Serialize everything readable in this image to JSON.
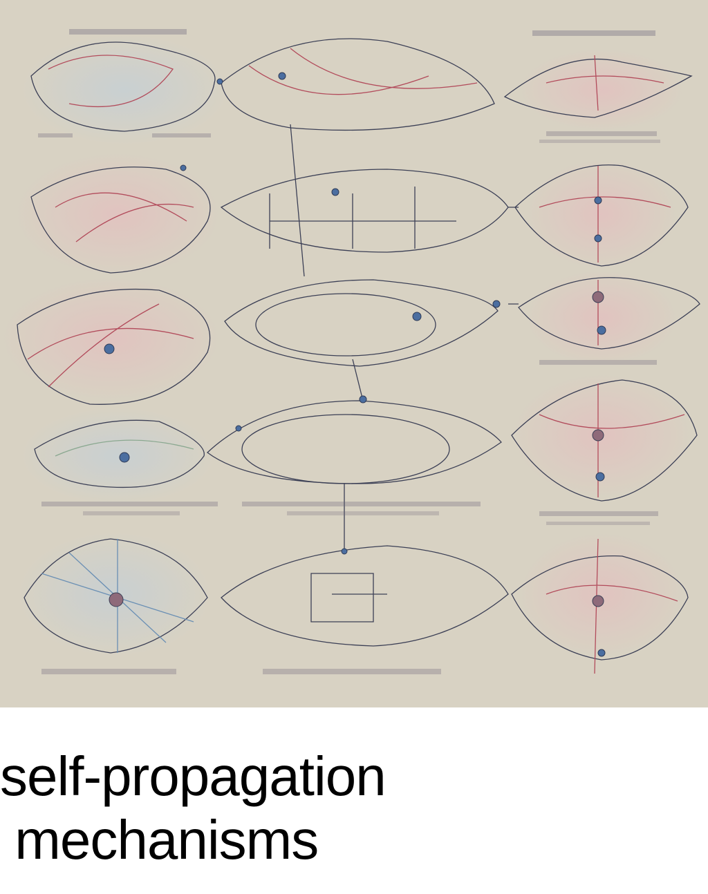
{
  "image": {
    "subject": "artwork",
    "background_color": "#d8d2c3",
    "line_colors": [
      "#3b3f55",
      "#b24b5b",
      "#6a8fb4",
      "#8aa890"
    ]
  },
  "caption": {
    "line1": "self-propagation",
    "line2": " mechanisms"
  }
}
